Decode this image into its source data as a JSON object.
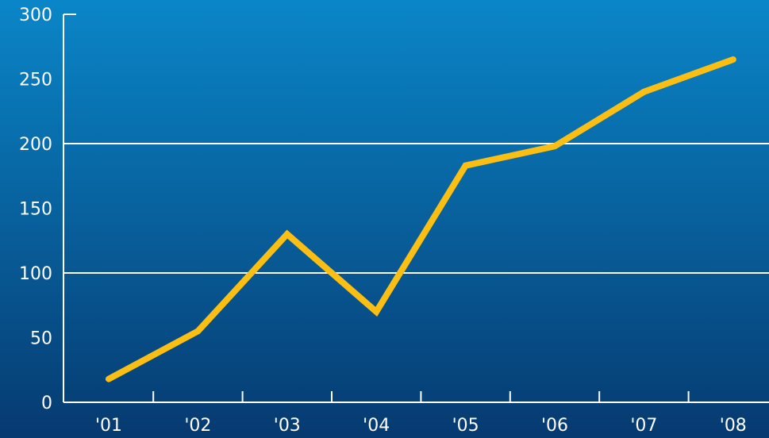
{
  "chart_data": {
    "type": "line",
    "categories": [
      "'01",
      "'02",
      "'03",
      "'04",
      "'05",
      "'06",
      "'07",
      "'08"
    ],
    "series": [
      {
        "values": [
          18,
          55,
          130,
          70,
          183,
          198,
          240,
          265
        ],
        "color": "#fbbf14"
      }
    ],
    "title": "",
    "xlabel": "",
    "ylabel": "",
    "ylim": [
      0,
      300
    ],
    "yticks": [
      "0",
      "50",
      "100",
      "150",
      "200",
      "250",
      "300"
    ],
    "gridlines_at": [
      100,
      200
    ],
    "grid": true,
    "legend": "none",
    "colors": {
      "background_top": "#0a86c8",
      "background_bottom": "#063a70",
      "axis": "#ffffff",
      "gridline": "#ffffff",
      "line": "#fbbf14",
      "text": "#ffffff"
    }
  }
}
